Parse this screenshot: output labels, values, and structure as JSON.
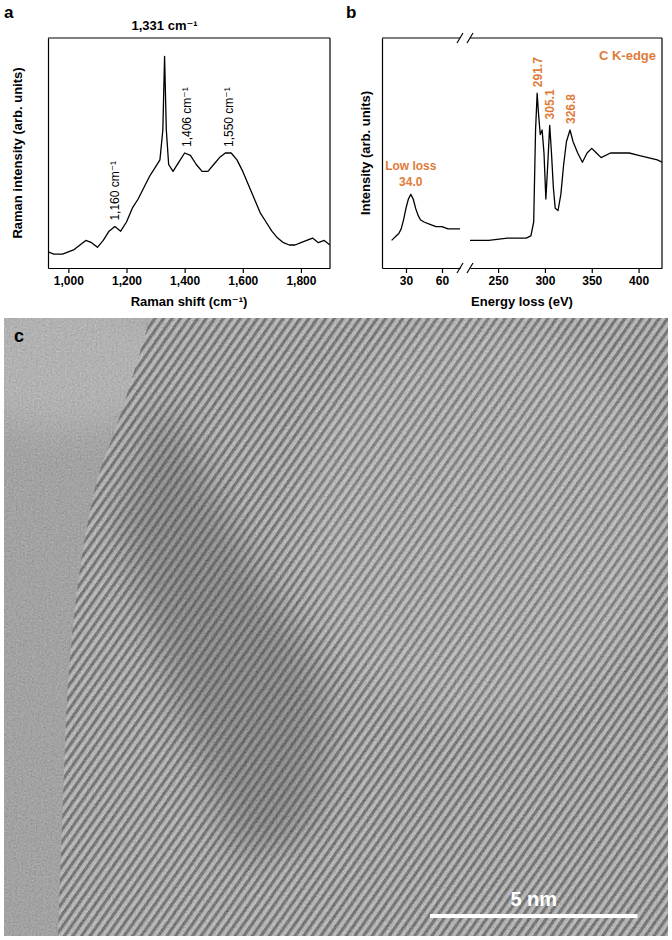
{
  "chart_data": [
    {
      "type": "line",
      "panel": "a",
      "x_label": "Raman shift (cm⁻¹)",
      "y_label": "Raman intensity (arb. units)",
      "x": [
        930,
        950,
        980,
        1000,
        1020,
        1040,
        1060,
        1080,
        1100,
        1120,
        1140,
        1160,
        1180,
        1200,
        1220,
        1240,
        1260,
        1280,
        1300,
        1315,
        1325,
        1331,
        1337,
        1345,
        1360,
        1380,
        1400,
        1420,
        1440,
        1460,
        1480,
        1500,
        1520,
        1540,
        1560,
        1580,
        1600,
        1620,
        1640,
        1660,
        1680,
        1700,
        1720,
        1740,
        1760,
        1780,
        1800,
        1820,
        1840,
        1860,
        1880,
        1900
      ],
      "values": [
        0.07,
        0.06,
        0.06,
        0.07,
        0.08,
        0.1,
        0.12,
        0.11,
        0.09,
        0.12,
        0.16,
        0.18,
        0.16,
        0.2,
        0.26,
        0.3,
        0.35,
        0.4,
        0.44,
        0.47,
        0.6,
        0.92,
        0.6,
        0.45,
        0.42,
        0.46,
        0.5,
        0.49,
        0.45,
        0.42,
        0.42,
        0.45,
        0.48,
        0.5,
        0.5,
        0.47,
        0.42,
        0.36,
        0.3,
        0.24,
        0.2,
        0.16,
        0.13,
        0.11,
        0.1,
        0.1,
        0.11,
        0.12,
        0.13,
        0.11,
        0.12,
        0.1
      ],
      "color": "#000000",
      "xlim": [
        930,
        1900
      ],
      "xticks": [
        {
          "value": 1000,
          "label": "1,000"
        },
        {
          "value": 1200,
          "label": "1,200"
        },
        {
          "value": 1400,
          "label": "1,400"
        },
        {
          "value": 1600,
          "label": "1,600"
        },
        {
          "value": 1800,
          "label": "1,800"
        }
      ],
      "ylim": [
        0,
        1
      ],
      "tick_labels": "x",
      "annotations": [
        {
          "text": "1,331 cm⁻¹",
          "x": 1331
        },
        {
          "text": "1,160 cm⁻¹",
          "x": 1160
        },
        {
          "text": "1,406 cm⁻¹",
          "x": 1406
        },
        {
          "text": "1,550 cm⁻¹",
          "x": 1550
        }
      ]
    },
    {
      "type": "line",
      "panel": "b",
      "y_label": "Intensity (arb. units)",
      "x": [
        18,
        20,
        22,
        24,
        26,
        28,
        30,
        32,
        34,
        36,
        38,
        40,
        42,
        45,
        50,
        55,
        60,
        65,
        70,
        75
      ],
      "values": [
        0.12,
        0.13,
        0.14,
        0.15,
        0.17,
        0.21,
        0.26,
        0.3,
        0.32,
        0.3,
        0.26,
        0.23,
        0.21,
        0.2,
        0.19,
        0.18,
        0.18,
        0.17,
        0.17,
        0.17
      ],
      "color": "#000000",
      "xlim": [
        10,
        75
      ],
      "xticks": [
        30,
        60
      ],
      "ylim": [
        0,
        1
      ],
      "tick_labels": "x",
      "annotations": [
        {
          "text": "Low loss"
        },
        {
          "text": "34.0",
          "x": 34
        }
      ]
    },
    {
      "type": "line",
      "x_label": "Energy loss (eV)",
      "x": [
        220,
        240,
        260,
        280,
        285,
        288,
        290,
        291.7,
        293,
        295,
        297,
        299,
        301,
        303,
        305.1,
        307,
        309,
        311,
        314,
        317,
        320,
        323,
        326.8,
        330,
        335,
        340,
        345,
        350,
        355,
        360,
        370,
        380,
        390,
        400,
        410,
        420,
        425
      ],
      "values": [
        0.12,
        0.12,
        0.13,
        0.13,
        0.14,
        0.2,
        0.6,
        0.76,
        0.68,
        0.58,
        0.6,
        0.5,
        0.3,
        0.45,
        0.62,
        0.5,
        0.35,
        0.26,
        0.25,
        0.32,
        0.45,
        0.55,
        0.6,
        0.55,
        0.5,
        0.46,
        0.5,
        0.52,
        0.5,
        0.48,
        0.5,
        0.5,
        0.5,
        0.49,
        0.48,
        0.47,
        0.46
      ],
      "color": "#000000",
      "xlim": [
        220,
        425
      ],
      "xticks": [
        250,
        300,
        350,
        400
      ],
      "ylim": [
        0,
        1
      ],
      "tick_labels": "x",
      "annotations": [
        {
          "text": "291.7",
          "x": 291.7
        },
        {
          "text": "305.1",
          "x": 305.1
        },
        {
          "text": "326.8",
          "x": 326.8
        },
        {
          "text": "C  K-edge"
        }
      ]
    },
    {
      "type": "image",
      "panel": "c",
      "xlim": [
        0,
        16
      ],
      "scale_bar": {
        "value": 5,
        "label": "5 nm"
      }
    }
  ]
}
